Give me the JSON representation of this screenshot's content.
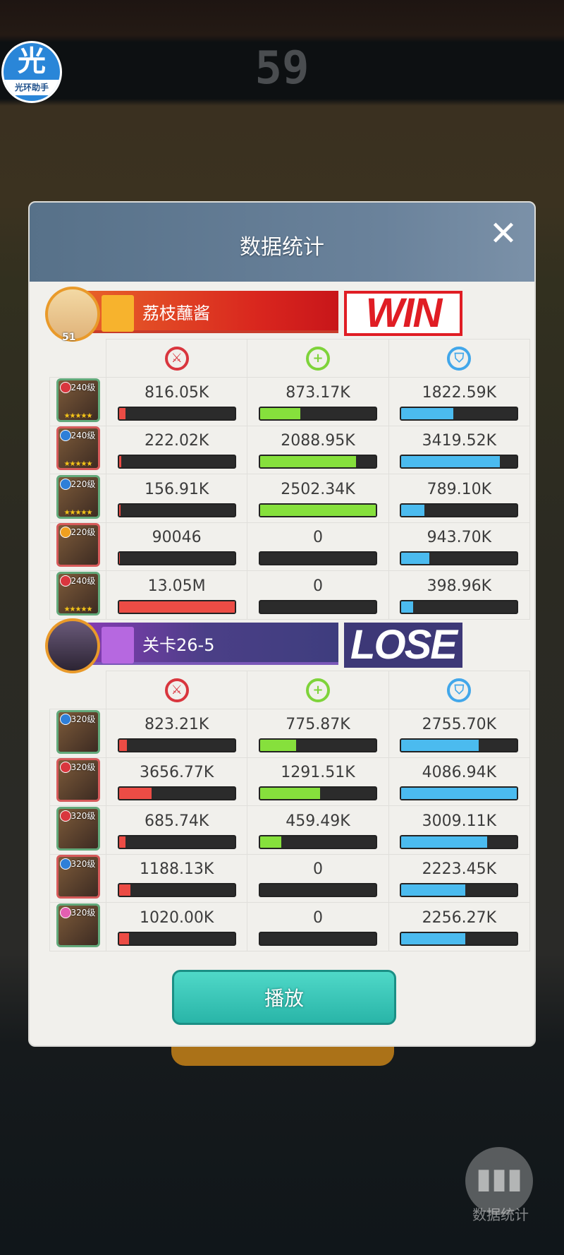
{
  "background": {
    "timer": "59",
    "overlay_logo": "光环助手",
    "logo_glyph": "光",
    "float_button": "数据统计"
  },
  "dialog": {
    "title": "数据统计",
    "close_icon": "close-icon",
    "stat_icons": [
      {
        "name": "damage",
        "icon": "sword-icon",
        "color": "#d9363e",
        "glyph": "⚔"
      },
      {
        "name": "heal",
        "icon": "plus-icon",
        "color": "#7ed33a",
        "glyph": "+"
      },
      {
        "name": "shield",
        "icon": "shield-icon",
        "color": "#42a7ea",
        "glyph": "⛉"
      }
    ],
    "bar_colors": {
      "damage": "#ec4c45",
      "heal": "#86e03c",
      "shield": "#4bbbef"
    },
    "teams": [
      {
        "name": "荔枝蘸酱",
        "result": "WIN",
        "player_level": "51",
        "heroes": [
          {
            "level": "240级",
            "element": "#d9363e",
            "stars": 5,
            "damage": "816.05K",
            "damage_pct": 6,
            "heal": "873.17K",
            "heal_pct": 35,
            "shield": "1822.59K",
            "shield_pct": 45
          },
          {
            "level": "240级",
            "element": "#2f7fd8",
            "stars": 5,
            "damage": "222.02K",
            "damage_pct": 2,
            "heal": "2088.95K",
            "heal_pct": 83,
            "shield": "3419.52K",
            "shield_pct": 85
          },
          {
            "level": "220级",
            "element": "#2f7fd8",
            "stars": 5,
            "damage": "156.91K",
            "damage_pct": 1.5,
            "heal": "2502.34K",
            "heal_pct": 100,
            "shield": "789.10K",
            "shield_pct": 20
          },
          {
            "level": "220级",
            "element": "#f0a020",
            "stars": 0,
            "damage": "90046",
            "damage_pct": 1,
            "heal": "0",
            "heal_pct": 0,
            "shield": "943.70K",
            "shield_pct": 24
          },
          {
            "level": "240级",
            "element": "#d9363e",
            "stars": 5,
            "damage": "13.05M",
            "damage_pct": 100,
            "heal": "0",
            "heal_pct": 0,
            "shield": "398.96K",
            "shield_pct": 10
          }
        ]
      },
      {
        "name": "关卡26-5",
        "result": "LOSE",
        "player_level": "",
        "heroes": [
          {
            "level": "320级",
            "element": "#2f7fd8",
            "stars": 0,
            "damage": "823.21K",
            "damage_pct": 7,
            "heal": "775.87K",
            "heal_pct": 31,
            "shield": "2755.70K",
            "shield_pct": 67
          },
          {
            "level": "320级",
            "element": "#d9363e",
            "stars": 0,
            "damage": "3656.77K",
            "damage_pct": 28,
            "heal": "1291.51K",
            "heal_pct": 52,
            "shield": "4086.94K",
            "shield_pct": 100
          },
          {
            "level": "320级",
            "element": "#d9363e",
            "stars": 0,
            "damage": "685.74K",
            "damage_pct": 6,
            "heal": "459.49K",
            "heal_pct": 18,
            "shield": "3009.11K",
            "shield_pct": 74
          },
          {
            "level": "320级",
            "element": "#2f7fd8",
            "stars": 0,
            "damage": "1188.13K",
            "damage_pct": 10,
            "heal": "0",
            "heal_pct": 0,
            "shield": "2223.45K",
            "shield_pct": 55
          },
          {
            "level": "320级",
            "element": "#e35fb0",
            "stars": 0,
            "damage": "1020.00K",
            "damage_pct": 9,
            "heal": "0",
            "heal_pct": 0,
            "shield": "2256.27K",
            "shield_pct": 55
          }
        ]
      }
    ],
    "play_label": "播放"
  }
}
